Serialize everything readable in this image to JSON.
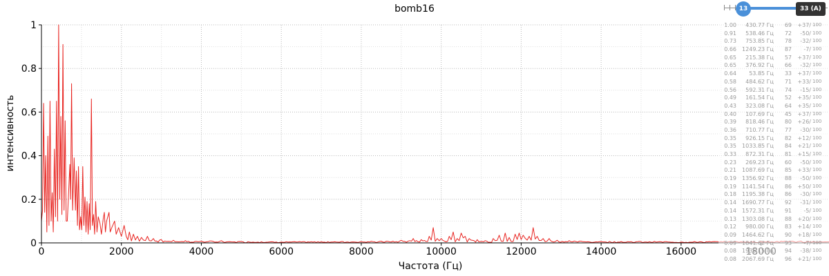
{
  "chart_data": {
    "type": "line",
    "title": "bomb16",
    "xlabel": "Частота (Гц)",
    "ylabel": "интенсивность",
    "xlim": [
      0,
      19700
    ],
    "ylim": [
      0,
      1
    ],
    "x_ticks": [
      "0",
      "2000",
      "4000",
      "6000",
      "8000",
      "10000",
      "12000",
      "14000",
      "16000",
      "18000"
    ],
    "y_ticks": [
      "0",
      "0.2",
      "0.4",
      "0.6",
      "0.8",
      "1"
    ],
    "grid": true,
    "series_color": "#e8231f",
    "peak_points": [
      [
        0,
        0.1
      ],
      [
        27,
        0.15
      ],
      [
        54,
        0.64
      ],
      [
        81,
        0.14
      ],
      [
        108,
        0.4
      ],
      [
        135,
        0.05
      ],
      [
        161,
        0.49
      ],
      [
        188,
        0.08
      ],
      [
        215,
        0.65
      ],
      [
        242,
        0.1
      ],
      [
        269,
        0.23
      ],
      [
        296,
        0.05
      ],
      [
        323,
        0.43
      ],
      [
        350,
        0.12
      ],
      [
        377,
        0.65
      ],
      [
        404,
        0.1
      ],
      [
        431,
        1.0
      ],
      [
        458,
        0.2
      ],
      [
        485,
        0.58
      ],
      [
        512,
        0.13
      ],
      [
        538,
        0.91
      ],
      [
        565,
        0.15
      ],
      [
        592,
        0.56
      ],
      [
        619,
        0.1
      ],
      [
        646,
        0.1
      ],
      [
        673,
        0.2
      ],
      [
        711,
        0.36
      ],
      [
        730,
        0.2
      ],
      [
        754,
        0.73
      ],
      [
        780,
        0.15
      ],
      [
        818,
        0.39
      ],
      [
        850,
        0.15
      ],
      [
        873,
        0.33
      ],
      [
        900,
        0.08
      ],
      [
        926,
        0.35
      ],
      [
        953,
        0.06
      ],
      [
        980,
        0.12
      ],
      [
        1007,
        0.06
      ],
      [
        1034,
        0.35
      ],
      [
        1060,
        0.08
      ],
      [
        1088,
        0.21
      ],
      [
        1115,
        0.05
      ],
      [
        1141,
        0.19
      ],
      [
        1168,
        0.04
      ],
      [
        1195,
        0.18
      ],
      [
        1220,
        0.06
      ],
      [
        1249,
        0.66
      ],
      [
        1275,
        0.08
      ],
      [
        1303,
        0.13
      ],
      [
        1330,
        0.04
      ],
      [
        1357,
        0.19
      ],
      [
        1390,
        0.05
      ],
      [
        1420,
        0.12
      ],
      [
        1464,
        0.09
      ],
      [
        1500,
        0.04
      ],
      [
        1545,
        0.11
      ],
      [
        1572,
        0.14
      ],
      [
        1600,
        0.05
      ],
      [
        1630,
        0.1
      ],
      [
        1690,
        0.14
      ],
      [
        1720,
        0.05
      ],
      [
        1760,
        0.07
      ],
      [
        1830,
        0.1
      ],
      [
        1870,
        0.04
      ],
      [
        1930,
        0.07
      ],
      [
        2000,
        0.03
      ],
      [
        2068,
        0.08
      ],
      [
        2120,
        0.03
      ],
      [
        2200,
        0.05
      ],
      [
        2300,
        0.04
      ],
      [
        2400,
        0.03
      ],
      [
        2500,
        0.025
      ],
      [
        2650,
        0.03
      ],
      [
        2800,
        0.02
      ],
      [
        3000,
        0.015
      ],
      [
        3300,
        0.012
      ],
      [
        3600,
        0.01
      ],
      [
        4000,
        0.008
      ],
      [
        4500,
        0.01
      ],
      [
        5000,
        0.006
      ],
      [
        5500,
        0.005
      ],
      [
        6000,
        0.004
      ],
      [
        6500,
        0.004
      ],
      [
        7000,
        0.005
      ],
      [
        7500,
        0.006
      ],
      [
        8000,
        0.006
      ],
      [
        8500,
        0.008
      ],
      [
        9000,
        0.012
      ],
      [
        9300,
        0.02
      ],
      [
        9500,
        0.015
      ],
      [
        9700,
        0.03
      ],
      [
        9800,
        0.07
      ],
      [
        9900,
        0.02
      ],
      [
        10000,
        0.02
      ],
      [
        10200,
        0.03
      ],
      [
        10300,
        0.05
      ],
      [
        10400,
        0.02
      ],
      [
        10500,
        0.045
      ],
      [
        10600,
        0.03
      ],
      [
        10700,
        0.02
      ],
      [
        10900,
        0.015
      ],
      [
        11100,
        0.01
      ],
      [
        11300,
        0.02
      ],
      [
        11450,
        0.035
      ],
      [
        11600,
        0.045
      ],
      [
        11700,
        0.025
      ],
      [
        11850,
        0.04
      ],
      [
        11950,
        0.045
      ],
      [
        12050,
        0.035
      ],
      [
        12200,
        0.03
      ],
      [
        12300,
        0.07
      ],
      [
        12400,
        0.03
      ],
      [
        12550,
        0.02
      ],
      [
        12700,
        0.02
      ],
      [
        12900,
        0.012
      ],
      [
        13200,
        0.01
      ],
      [
        13500,
        0.008
      ],
      [
        14000,
        0.006
      ],
      [
        14500,
        0.006
      ],
      [
        15000,
        0.005
      ],
      [
        15500,
        0.005
      ],
      [
        16000,
        0.004
      ],
      [
        16500,
        0.005
      ],
      [
        17000,
        0.005
      ],
      [
        17500,
        0.005
      ],
      [
        18000,
        0.006
      ],
      [
        18500,
        0.008
      ],
      [
        19000,
        0.008
      ],
      [
        19700,
        0.005
      ]
    ]
  },
  "slider": {
    "handle_value": "13",
    "badge_label": "33 (A)"
  },
  "peaks_table": {
    "max_label": "100",
    "rows": [
      {
        "amp": "1.00",
        "freq": "430.77 Гц",
        "note": "69",
        "cents": "+37/"
      },
      {
        "amp": "0.91",
        "freq": "538.46 Гц",
        "note": "72",
        "cents": "-50/"
      },
      {
        "amp": "0.73",
        "freq": "753.85 Гц",
        "note": "78",
        "cents": "-32/"
      },
      {
        "amp": "0.66",
        "freq": "1249.23 Гц",
        "note": "87",
        "cents": "-7/"
      },
      {
        "amp": "0.65",
        "freq": "215.38 Гц",
        "note": "57",
        "cents": "+37/"
      },
      {
        "amp": "0.65",
        "freq": "376.92 Гц",
        "note": "66",
        "cents": "-32/"
      },
      {
        "amp": "0.64",
        "freq": "53.85 Гц",
        "note": "33",
        "cents": "+37/"
      },
      {
        "amp": "0.58",
        "freq": "484.62 Гц",
        "note": "71",
        "cents": "+33/"
      },
      {
        "amp": "0.56",
        "freq": "592.31 Гц",
        "note": "74",
        "cents": "-15/"
      },
      {
        "amp": "0.49",
        "freq": "161.54 Гц",
        "note": "52",
        "cents": "+35/"
      },
      {
        "amp": "0.43",
        "freq": "323.08 Гц",
        "note": "64",
        "cents": "+35/"
      },
      {
        "amp": "0.40",
        "freq": "107.69 Гц",
        "note": "45",
        "cents": "+37/"
      },
      {
        "amp": "0.39",
        "freq": "818.46 Гц",
        "note": "80",
        "cents": "+26/"
      },
      {
        "amp": "0.36",
        "freq": "710.77 Гц",
        "note": "77",
        "cents": "-30/"
      },
      {
        "amp": "0.35",
        "freq": "926.15 Гц",
        "note": "82",
        "cents": "+12/"
      },
      {
        "amp": "0.35",
        "freq": "1033.85 Гц",
        "note": "84",
        "cents": "+21/"
      },
      {
        "amp": "0.33",
        "freq": "872.31 Гц",
        "note": "81",
        "cents": "+15/"
      },
      {
        "amp": "0.23",
        "freq": "269.23 Гц",
        "note": "60",
        "cents": "-50/"
      },
      {
        "amp": "0.21",
        "freq": "1087.69 Гц",
        "note": "85",
        "cents": "+33/"
      },
      {
        "amp": "0.19",
        "freq": "1356.92 Гц",
        "note": "88",
        "cents": "-50/"
      },
      {
        "amp": "0.19",
        "freq": "1141.54 Гц",
        "note": "86",
        "cents": "+50/"
      },
      {
        "amp": "0.18",
        "freq": "1195.38 Гц",
        "note": "86",
        "cents": "-30/"
      },
      {
        "amp": "0.14",
        "freq": "1690.77 Гц",
        "note": "92",
        "cents": "-31/"
      },
      {
        "amp": "0.14",
        "freq": "1572.31 Гц",
        "note": "91",
        "cents": "-5/"
      },
      {
        "amp": "0.13",
        "freq": "1303.08 Гц",
        "note": "88",
        "cents": "+20/"
      },
      {
        "amp": "0.12",
        "freq": "980.00 Гц",
        "note": "83",
        "cents": "+14/"
      },
      {
        "amp": "0.09",
        "freq": "1464.62 Гц",
        "note": "90",
        "cents": "+18/"
      },
      {
        "amp": "0.09",
        "freq": "1841.62 Гц",
        "note": "93",
        "cents": "-7/"
      },
      {
        "amp": "0.08",
        "freq": "1936.15 Гц",
        "note": "94",
        "cents": "-38/"
      },
      {
        "amp": "0.08",
        "freq": "2067.69 Гц",
        "note": "96",
        "cents": "+21/"
      }
    ]
  }
}
